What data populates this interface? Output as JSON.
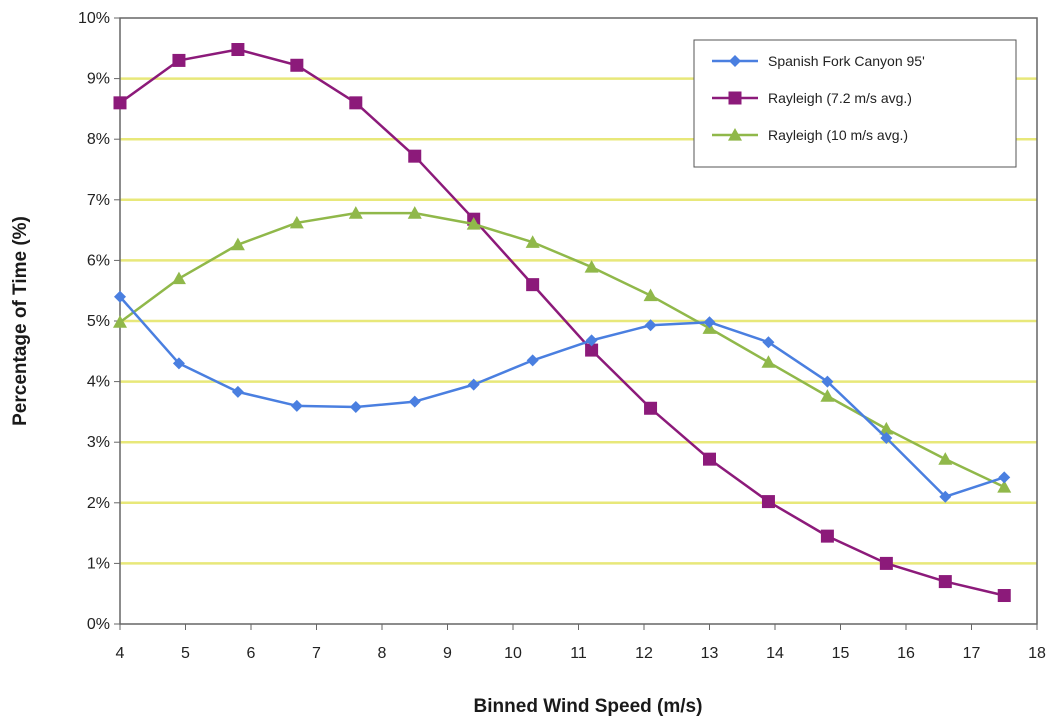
{
  "chart_data": {
    "type": "line",
    "title": "",
    "xlabel": "Binned Wind Speed (m/s)",
    "ylabel": "Percentage of Time (%)",
    "xlim": [
      4,
      18
    ],
    "ylim": [
      0,
      10
    ],
    "x_ticks": [
      "4",
      "5",
      "6",
      "7",
      "8",
      "9",
      "10",
      "11",
      "12",
      "13",
      "14",
      "15",
      "16",
      "17",
      "18"
    ],
    "y_ticks": [
      "0%",
      "1%",
      "2%",
      "3%",
      "4%",
      "5%",
      "6%",
      "7%",
      "8%",
      "9%",
      "10%"
    ],
    "grid": "horizontal",
    "legend_position": "top-right",
    "x": [
      4.0,
      4.9,
      5.8,
      6.7,
      7.6,
      8.5,
      9.4,
      10.3,
      11.2,
      12.1,
      13.0,
      13.9,
      14.8,
      15.7,
      16.6,
      17.5
    ],
    "series": [
      {
        "name": "Spanish Fork Canyon 95'",
        "color": "#4a7fe0",
        "marker": "diamond",
        "values": [
          5.4,
          4.3,
          3.83,
          3.6,
          3.58,
          3.67,
          3.95,
          4.35,
          4.68,
          4.93,
          4.98,
          4.65,
          4.0,
          3.07,
          2.1,
          2.42
        ]
      },
      {
        "name": "Rayleigh (7.2 m/s avg.)",
        "color": "#8c1a7a",
        "marker": "square",
        "values": [
          8.6,
          9.3,
          9.48,
          9.22,
          8.6,
          7.72,
          6.68,
          5.6,
          4.52,
          3.56,
          2.72,
          2.02,
          1.45,
          1.0,
          0.7,
          0.47
        ]
      },
      {
        "name": "Rayleigh (10 m/s avg.)",
        "color": "#90b84a",
        "marker": "triangle",
        "values": [
          4.98,
          5.7,
          6.26,
          6.62,
          6.78,
          6.78,
          6.6,
          6.3,
          5.89,
          5.42,
          4.88,
          4.32,
          3.76,
          3.22,
          2.72,
          2.26
        ]
      }
    ]
  }
}
